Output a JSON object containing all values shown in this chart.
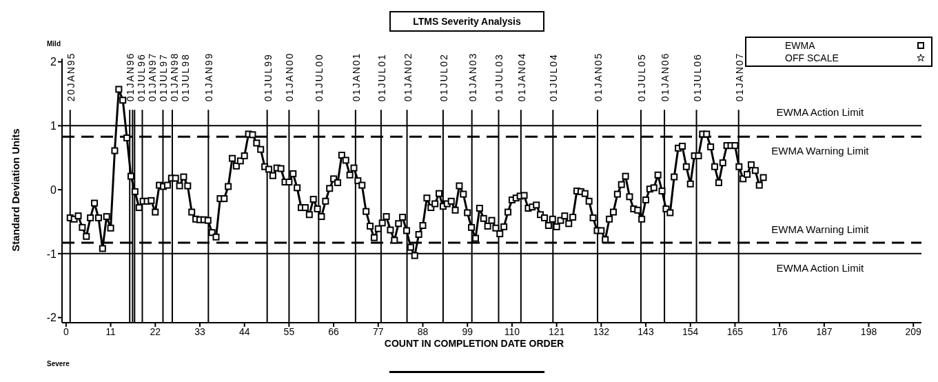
{
  "chart_data": {
    "type": "line",
    "title": "LTMS Severity Analysis",
    "xlabel": "COUNT IN COMPLETION DATE ORDER",
    "ylabel": "Standard Deviation Units",
    "annotations": [
      "Mild",
      "Severe"
    ],
    "x": [
      1,
      2,
      3,
      4,
      5,
      6,
      7,
      8,
      9,
      10,
      11,
      12,
      13,
      14,
      15,
      16,
      17,
      18,
      19,
      20,
      21,
      22,
      23,
      24,
      25,
      26,
      27,
      28,
      29,
      30,
      31,
      32,
      33,
      34,
      35,
      36,
      37,
      38,
      39,
      40,
      41,
      42,
      43,
      44,
      45,
      46,
      47,
      48,
      49,
      50,
      51,
      52,
      53,
      54,
      55,
      56,
      57,
      58,
      59,
      60,
      61,
      62,
      63,
      64,
      65,
      66,
      67,
      68,
      69,
      70,
      71,
      72,
      73,
      74,
      75,
      76,
      77,
      78,
      79,
      80,
      81,
      82,
      83,
      84,
      85,
      86,
      87,
      88,
      89,
      90,
      91,
      92,
      93,
      94,
      95,
      96,
      97,
      98,
      99,
      100,
      101,
      102,
      103,
      104,
      105,
      106,
      107,
      108,
      109,
      110,
      111,
      112,
      113,
      114,
      115,
      116,
      117,
      118,
      119,
      120,
      121,
      122,
      123,
      124,
      125,
      126,
      127,
      128,
      129,
      130,
      131,
      132,
      133,
      134,
      135,
      136,
      137,
      138,
      139,
      140,
      141,
      142,
      143,
      144,
      145,
      146,
      147,
      148,
      149,
      150,
      151,
      152,
      153,
      154,
      155,
      156,
      157,
      158,
      159,
      160,
      161,
      162,
      163,
      164,
      165,
      166,
      167,
      168,
      169,
      170,
      171,
      172
    ],
    "series": [
      {
        "name": "EWMA",
        "color": "#000000",
        "marker": "square",
        "values": [
          -0.44,
          -0.46,
          -0.41,
          -0.59,
          -0.73,
          -0.44,
          -0.21,
          -0.44,
          -0.92,
          -0.42,
          -0.6,
          0.61,
          1.57,
          1.4,
          0.81,
          0.21,
          -0.03,
          -0.28,
          -0.18,
          -0.18,
          -0.17,
          -0.35,
          0.07,
          0.05,
          0.07,
          0.18,
          0.18,
          0.06,
          0.2,
          0.06,
          -0.35,
          -0.46,
          -0.47,
          -0.47,
          -0.48,
          -0.67,
          -0.74,
          -0.14,
          -0.14,
          0.05,
          0.49,
          0.37,
          0.45,
          0.53,
          0.87,
          0.86,
          0.73,
          0.63,
          0.36,
          0.32,
          0.22,
          0.34,
          0.33,
          0.12,
          0.12,
          0.25,
          0.03,
          -0.28,
          -0.28,
          -0.39,
          -0.15,
          -0.3,
          -0.42,
          -0.18,
          0.02,
          0.17,
          0.11,
          0.54,
          0.46,
          0.23,
          0.34,
          0.14,
          0.07,
          -0.34,
          -0.57,
          -0.75,
          -0.61,
          -0.52,
          -0.42,
          -0.63,
          -0.79,
          -0.53,
          -0.43,
          -0.64,
          -0.9,
          -1.03,
          -0.7,
          -0.56,
          -0.13,
          -0.28,
          -0.22,
          -0.06,
          -0.26,
          -0.22,
          -0.18,
          -0.32,
          0.06,
          -0.07,
          -0.36,
          -0.59,
          -0.76,
          -0.29,
          -0.45,
          -0.57,
          -0.48,
          -0.6,
          -0.69,
          -0.58,
          -0.35,
          -0.16,
          -0.13,
          -0.1,
          -0.09,
          -0.29,
          -0.27,
          -0.24,
          -0.39,
          -0.44,
          -0.56,
          -0.46,
          -0.58,
          -0.48,
          -0.41,
          -0.53,
          -0.43,
          -0.02,
          -0.03,
          -0.06,
          -0.18,
          -0.44,
          -0.64,
          -0.64,
          -0.78,
          -0.46,
          -0.35,
          -0.07,
          0.08,
          0.21,
          -0.11,
          -0.3,
          -0.32,
          -0.46,
          -0.16,
          0.01,
          0.03,
          0.23,
          -0.02,
          -0.3,
          -0.36,
          0.2,
          0.65,
          0.68,
          0.36,
          0.09,
          0.53,
          0.53,
          0.87,
          0.87,
          0.67,
          0.36,
          0.11,
          0.42,
          0.69,
          0.69,
          0.69,
          0.36,
          0.17,
          0.24,
          0.39,
          0.3,
          0.07,
          0.19
        ]
      },
      {
        "name": "OFF SCALE",
        "color": "#000000",
        "marker": "star",
        "values": [
          null,
          null,
          null,
          null,
          null,
          null,
          null,
          null,
          null,
          null,
          null,
          null,
          null,
          null,
          null,
          null,
          null,
          null,
          null,
          null,
          null,
          null,
          null,
          null,
          null,
          null,
          null,
          null,
          null,
          null,
          null,
          null,
          null,
          null,
          null,
          null,
          null,
          null,
          null,
          null,
          null,
          null,
          null,
          null,
          null,
          null,
          null,
          null,
          null,
          null,
          null,
          null,
          null,
          null,
          null,
          null,
          null,
          null,
          null,
          null,
          null,
          null,
          null,
          null,
          null,
          null,
          null,
          null,
          null,
          null,
          null,
          null,
          null,
          null,
          null,
          null,
          null,
          null,
          null,
          null,
          null,
          null,
          null,
          null,
          null,
          null,
          null,
          null,
          null,
          null,
          null,
          null,
          null,
          null,
          null,
          null,
          null,
          null,
          null,
          null,
          null,
          null,
          null,
          null,
          null,
          null,
          null,
          null,
          null,
          null,
          null,
          null,
          null,
          null,
          null,
          null,
          null,
          null,
          null,
          null,
          null,
          null,
          null,
          null,
          null,
          null,
          null,
          null,
          null,
          null,
          null,
          null,
          null,
          null,
          null,
          null,
          null,
          null,
          null,
          null,
          null,
          null,
          null,
          null,
          null,
          null,
          null,
          null,
          null,
          null,
          null,
          null,
          null,
          null,
          null,
          null,
          null,
          null,
          null,
          null,
          null,
          null,
          null,
          null,
          null,
          null,
          null,
          null,
          null,
          null,
          null,
          null
        ]
      }
    ],
    "xlim": [
      -1,
      211
    ],
    "xticks": [
      0,
      11,
      22,
      33,
      44,
      55,
      66,
      77,
      88,
      99,
      110,
      121,
      132,
      143,
      154,
      165,
      176,
      187,
      198,
      209
    ],
    "ylim": [
      -2.08,
      2.05
    ],
    "yticks": [
      -2,
      -1,
      0,
      1,
      2
    ],
    "legend": "top right",
    "grid": false,
    "line_style": "solid",
    "ref_lines": [
      {
        "axis": "y",
        "value": 1,
        "label": "EWMA Action Limit",
        "line_style": "solid"
      },
      {
        "axis": "y",
        "value": 0.83,
        "label": "EWMA Warning Limit",
        "line_style": "dashed"
      },
      {
        "axis": "y",
        "value": -0.83,
        "label": "EWMA Warning Limit",
        "line_style": "dashed"
      },
      {
        "axis": "y",
        "value": -1,
        "label": "EWMA Action Limit",
        "line_style": "solid"
      },
      {
        "axis": "x",
        "value": 1,
        "label": "20JAN95"
      },
      {
        "axis": "x",
        "value": 15.7,
        "label": "01JAN96"
      },
      {
        "axis": "x",
        "value": 16.4,
        "label": "01JUL96"
      },
      {
        "axis": "x",
        "value": 16.9,
        "label": "01JAN97"
      },
      {
        "axis": "x",
        "value": 18.8,
        "label": "01JUL97"
      },
      {
        "axis": "x",
        "value": 23.9,
        "label": "01JAN98"
      },
      {
        "axis": "x",
        "value": 26.2,
        "label": "01JUL98"
      },
      {
        "axis": "x",
        "value": 35.1,
        "label": "01JAN99"
      },
      {
        "axis": "x",
        "value": 49.6,
        "label": "01JUL99"
      },
      {
        "axis": "x",
        "value": 55,
        "label": "01JAN00"
      },
      {
        "axis": "x",
        "value": 62.3,
        "label": "01JUL00"
      },
      {
        "axis": "x",
        "value": 71.4,
        "label": "01JAN01"
      },
      {
        "axis": "x",
        "value": 77.7,
        "label": "01JUL01"
      },
      {
        "axis": "x",
        "value": 84.1,
        "label": "01JAN02"
      },
      {
        "axis": "x",
        "value": 93,
        "label": "01JUL02"
      },
      {
        "axis": "x",
        "value": 100.1,
        "label": "01JAN03"
      },
      {
        "axis": "x",
        "value": 106.7,
        "label": "01JUL03"
      },
      {
        "axis": "x",
        "value": 112.2,
        "label": "01JAN04"
      },
      {
        "axis": "x",
        "value": 120.1,
        "label": "01JUL04"
      },
      {
        "axis": "x",
        "value": 131.1,
        "label": "01JAN05"
      },
      {
        "axis": "x",
        "value": 141.8,
        "label": "01JUL05"
      },
      {
        "axis": "x",
        "value": 147.6,
        "label": "01JAN06"
      },
      {
        "axis": "x",
        "value": 155.5,
        "label": "01JUL06"
      },
      {
        "axis": "x",
        "value": 165.9,
        "label": "01JAN07"
      }
    ]
  }
}
